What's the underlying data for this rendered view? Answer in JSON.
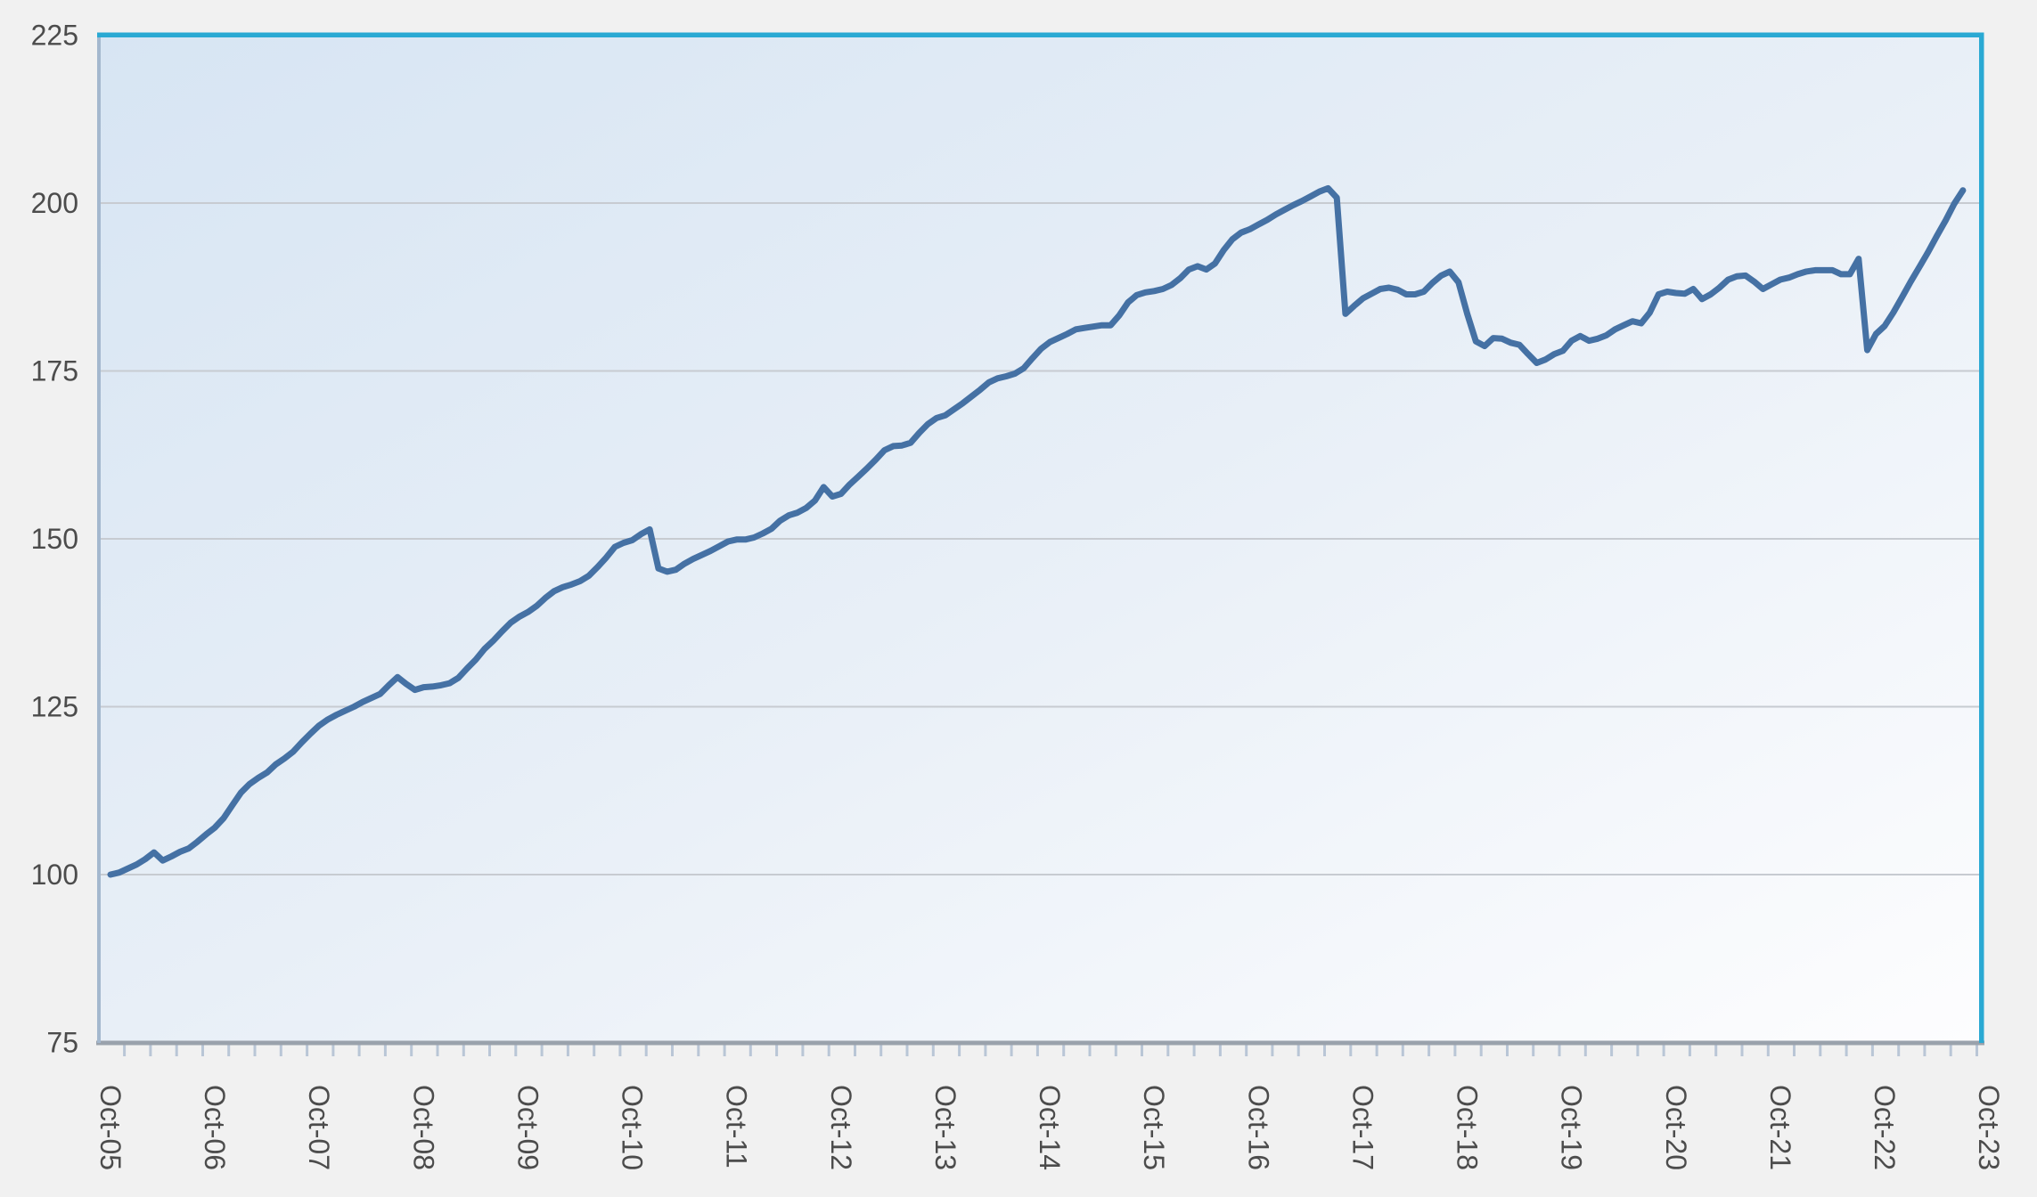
{
  "page": {
    "background_color": "#f1f1f1"
  },
  "chart_data": {
    "type": "line",
    "title": "",
    "legend": "none",
    "grid": "horizontal-only",
    "x_axis": {
      "tick_labels": [
        "Oct-05",
        "Oct-06",
        "Oct-07",
        "Oct-08",
        "Oct-09",
        "Oct-10",
        "Oct-11",
        "Oct-12",
        "Oct-13",
        "Oct-14",
        "Oct-15",
        "Oct-16",
        "Oct-17",
        "Oct-18",
        "Oct-19",
        "Oct-20",
        "Oct-21",
        "Oct-22",
        "Oct-23"
      ],
      "label_rotation_deg": 90,
      "minor_tick_every_months": 3
    },
    "y_axis": {
      "tick_labels": [
        "75",
        "100",
        "125",
        "150",
        "175",
        "200",
        "225"
      ],
      "min": 75,
      "max": 225,
      "tick_interval": 25,
      "gridline_values": [
        100,
        125,
        150,
        175,
        200
      ]
    },
    "series": [
      {
        "label": "",
        "color": "#4571a4",
        "x_encoding": "months-after-Oct-2005",
        "points": [
          [
            0,
            100
          ],
          [
            1,
            100.3
          ],
          [
            2,
            100.9
          ],
          [
            3,
            101.5
          ],
          [
            4,
            102.3
          ],
          [
            5,
            103.3
          ],
          [
            6,
            102.1
          ],
          [
            7,
            102.7
          ],
          [
            8,
            103.4
          ],
          [
            9,
            103.9
          ],
          [
            10,
            104.9
          ],
          [
            11,
            106
          ],
          [
            12,
            107
          ],
          [
            13,
            108.4
          ],
          [
            14,
            110.3
          ],
          [
            15,
            112.2
          ],
          [
            16,
            113.5
          ],
          [
            17,
            114.4
          ],
          [
            18,
            115.2
          ],
          [
            19,
            116.4
          ],
          [
            20,
            117.3
          ],
          [
            21,
            118.3
          ],
          [
            22,
            119.7
          ],
          [
            23,
            121
          ],
          [
            24,
            122.2
          ],
          [
            25,
            123.1
          ],
          [
            26,
            123.8
          ],
          [
            27,
            124.4
          ],
          [
            28,
            125
          ],
          [
            29,
            125.7
          ],
          [
            30,
            126.3
          ],
          [
            31,
            126.9
          ],
          [
            32,
            128.2
          ],
          [
            33,
            129.4
          ],
          [
            34,
            128.4
          ],
          [
            35,
            127.5
          ],
          [
            36,
            127.9
          ],
          [
            37,
            128
          ],
          [
            38,
            128.2
          ],
          [
            39,
            128.5
          ],
          [
            40,
            129.3
          ],
          [
            41,
            130.7
          ],
          [
            42,
            132
          ],
          [
            43,
            133.6
          ],
          [
            44,
            134.8
          ],
          [
            45,
            136.2
          ],
          [
            46,
            137.5
          ],
          [
            47,
            138.4
          ],
          [
            48,
            139.1
          ],
          [
            49,
            140
          ],
          [
            50,
            141.2
          ],
          [
            51,
            142.2
          ],
          [
            52,
            142.8
          ],
          [
            53,
            143.2
          ],
          [
            54,
            143.7
          ],
          [
            55,
            144.5
          ],
          [
            56,
            145.8
          ],
          [
            57,
            147.2
          ],
          [
            58,
            148.8
          ],
          [
            59,
            149.4
          ],
          [
            60,
            149.8
          ],
          [
            61,
            150.7
          ],
          [
            62,
            151.4
          ],
          [
            63,
            145.6
          ],
          [
            64,
            145.1
          ],
          [
            65,
            145.4
          ],
          [
            66,
            146.3
          ],
          [
            67,
            147
          ],
          [
            68,
            147.6
          ],
          [
            69,
            148.2
          ],
          [
            70,
            148.9
          ],
          [
            71,
            149.6
          ],
          [
            72,
            149.9
          ],
          [
            73,
            149.9
          ],
          [
            74,
            150.2
          ],
          [
            75,
            150.8
          ],
          [
            76,
            151.5
          ],
          [
            77,
            152.7
          ],
          [
            78,
            153.5
          ],
          [
            79,
            153.9
          ],
          [
            80,
            154.6
          ],
          [
            81,
            155.7
          ],
          [
            82,
            157.7
          ],
          [
            83,
            156.3
          ],
          [
            84,
            156.7
          ],
          [
            85,
            158.1
          ],
          [
            86,
            159.3
          ],
          [
            87,
            160.5
          ],
          [
            88,
            161.8
          ],
          [
            89,
            163.2
          ],
          [
            90,
            163.8
          ],
          [
            91,
            163.9
          ],
          [
            92,
            164.3
          ],
          [
            93,
            165.8
          ],
          [
            94,
            167.1
          ],
          [
            95,
            168
          ],
          [
            96,
            168.4
          ],
          [
            97,
            169.3
          ],
          [
            98,
            170.2
          ],
          [
            99,
            171.2
          ],
          [
            100,
            172.2
          ],
          [
            101,
            173.3
          ],
          [
            102,
            173.9
          ],
          [
            103,
            174.2
          ],
          [
            104,
            174.6
          ],
          [
            105,
            175.4
          ],
          [
            106,
            176.9
          ],
          [
            107,
            178.3
          ],
          [
            108,
            179.3
          ],
          [
            109,
            179.9
          ],
          [
            110,
            180.5
          ],
          [
            111,
            181.2
          ],
          [
            112,
            181.4
          ],
          [
            113,
            181.6
          ],
          [
            114,
            181.8
          ],
          [
            115,
            181.8
          ],
          [
            116,
            183.3
          ],
          [
            117,
            185.2
          ],
          [
            118,
            186.3
          ],
          [
            119,
            186.7
          ],
          [
            120,
            186.9
          ],
          [
            121,
            187.2
          ],
          [
            122,
            187.8
          ],
          [
            123,
            188.8
          ],
          [
            124,
            190.1
          ],
          [
            125,
            190.6
          ],
          [
            126,
            190.1
          ],
          [
            127,
            191
          ],
          [
            128,
            193
          ],
          [
            129,
            194.6
          ],
          [
            130,
            195.6
          ],
          [
            131,
            196.1
          ],
          [
            132,
            196.8
          ],
          [
            133,
            197.5
          ],
          [
            134,
            198.3
          ],
          [
            135,
            199
          ],
          [
            136,
            199.7
          ],
          [
            137,
            200.3
          ],
          [
            138,
            201
          ],
          [
            139,
            201.7
          ],
          [
            140,
            202.2
          ],
          [
            141,
            200.8
          ],
          [
            142,
            183.5
          ],
          [
            143,
            184.7
          ],
          [
            144,
            185.8
          ],
          [
            145,
            186.5
          ],
          [
            146,
            187.2
          ],
          [
            147,
            187.4
          ],
          [
            148,
            187.1
          ],
          [
            149,
            186.4
          ],
          [
            150,
            186.4
          ],
          [
            151,
            186.8
          ],
          [
            152,
            188.1
          ],
          [
            153,
            189.2
          ],
          [
            154,
            189.8
          ],
          [
            155,
            188.2
          ],
          [
            156,
            183.5
          ],
          [
            157,
            179.4
          ],
          [
            158,
            178.7
          ],
          [
            159,
            179.9
          ],
          [
            160,
            179.8
          ],
          [
            161,
            179.2
          ],
          [
            162,
            178.9
          ],
          [
            163,
            177.5
          ],
          [
            164,
            176.2
          ],
          [
            165,
            176.7
          ],
          [
            166,
            177.5
          ],
          [
            167,
            178
          ],
          [
            168,
            179.5
          ],
          [
            169,
            180.2
          ],
          [
            170,
            179.5
          ],
          [
            171,
            179.8
          ],
          [
            172,
            180.3
          ],
          [
            173,
            181.2
          ],
          [
            174,
            181.8
          ],
          [
            175,
            182.4
          ],
          [
            176,
            182.1
          ],
          [
            177,
            183.7
          ],
          [
            178,
            186.4
          ],
          [
            179,
            186.8
          ],
          [
            180,
            186.6
          ],
          [
            181,
            186.5
          ],
          [
            182,
            187.2
          ],
          [
            183,
            185.7
          ],
          [
            184,
            186.4
          ],
          [
            185,
            187.4
          ],
          [
            186,
            188.6
          ],
          [
            187,
            189.1
          ],
          [
            188,
            189.2
          ],
          [
            189,
            188.3
          ],
          [
            190,
            187.2
          ],
          [
            191,
            187.9
          ],
          [
            192,
            188.6
          ],
          [
            193,
            188.9
          ],
          [
            194,
            189.4
          ],
          [
            195,
            189.8
          ],
          [
            196,
            190
          ],
          [
            197,
            190
          ],
          [
            198,
            190
          ],
          [
            199,
            189.4
          ],
          [
            200,
            189.4
          ],
          [
            201,
            191.7
          ],
          [
            202,
            178.1
          ],
          [
            203,
            180.5
          ],
          [
            204,
            181.7
          ],
          [
            205,
            183.7
          ],
          [
            206,
            186
          ],
          [
            207,
            188.3
          ],
          [
            208,
            190.5
          ],
          [
            209,
            192.7
          ],
          [
            210,
            195.1
          ],
          [
            211,
            197.4
          ],
          [
            212,
            199.9
          ],
          [
            213,
            201.9
          ]
        ]
      }
    ],
    "style": {
      "line_color": "#4571a4",
      "plot_border_color": "#2aa9d3",
      "left_axis_color": "#a4b8ce",
      "bottom_axis_color": "#9aa2ac",
      "minor_tick_color": "#b9c6d6",
      "gridline_color": "#c7cbd1",
      "label_color": "#4c4c4c",
      "plot_bg_gradient": [
        "#d7e5f3",
        "#e8eff7",
        "#fdfdfe"
      ],
      "page_bg": "#f1f1f1"
    }
  }
}
